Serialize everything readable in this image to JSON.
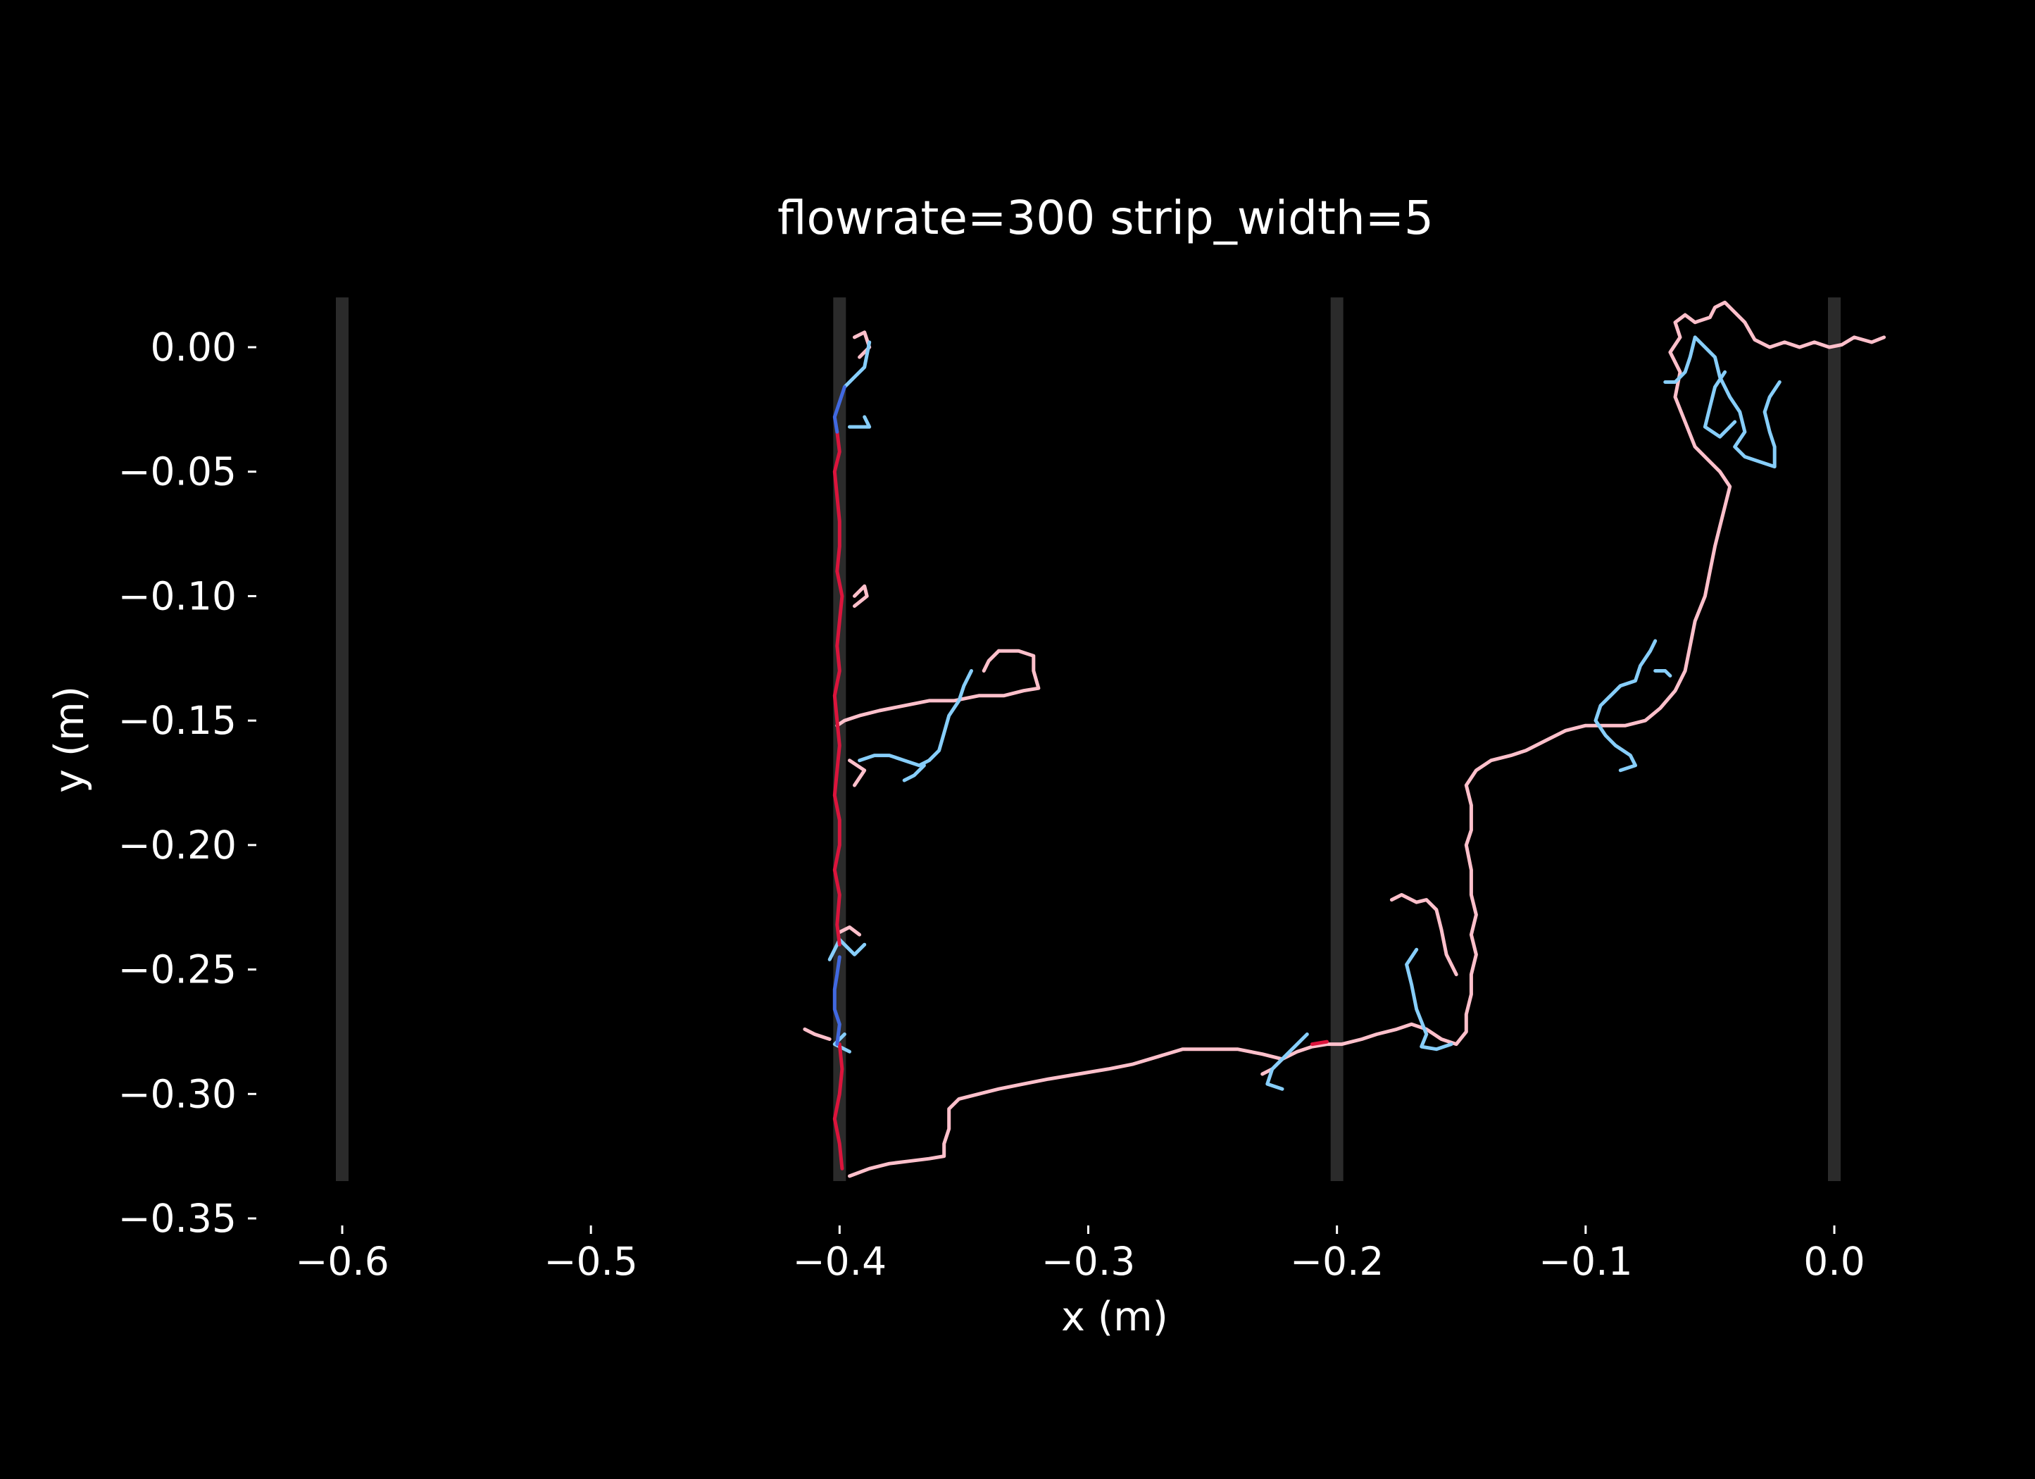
{
  "chart_data": {
    "type": "line",
    "title": "flowrate=300 strip_width=5",
    "xlabel": "x (m)",
    "ylabel": "y (m)",
    "xlim": [
      -0.63,
      0.03
    ],
    "ylim": [
      -0.35,
      0.018
    ],
    "x_ticks": [
      -0.6,
      -0.5,
      -0.4,
      -0.3,
      -0.2,
      -0.1,
      0.0
    ],
    "x_tick_labels": [
      "−0.6",
      "−0.5",
      "−0.4",
      "−0.3",
      "−0.2",
      "−0.1",
      "0.0"
    ],
    "y_ticks": [
      0.0,
      -0.05,
      -0.1,
      -0.15,
      -0.2,
      -0.25,
      -0.3,
      -0.35
    ],
    "y_tick_labels": [
      "0.00",
      "−0.05",
      "−0.10",
      "−0.15",
      "−0.20",
      "−0.25",
      "−0.30",
      "−0.35"
    ],
    "grid": false,
    "background": "#000000",
    "strips": {
      "x_centers": [
        -0.6,
        -0.4,
        -0.2,
        0.0
      ],
      "y_range": [
        -0.335,
        0.02
      ],
      "color": "#2b2b2b"
    },
    "series": [
      {
        "color": "#ffc0cb",
        "points": [
          [
            0.02,
            0.004
          ],
          [
            0.015,
            0.002
          ],
          [
            0.008,
            0.004
          ],
          [
            0.003,
            0.001
          ],
          [
            -0.002,
            0.0
          ],
          [
            -0.008,
            0.002
          ],
          [
            -0.014,
            0.0
          ],
          [
            -0.02,
            0.002
          ],
          [
            -0.026,
            0.0
          ],
          [
            -0.032,
            0.003
          ],
          [
            -0.036,
            0.01
          ],
          [
            -0.04,
            0.014
          ],
          [
            -0.044,
            0.018
          ],
          [
            -0.048,
            0.016
          ],
          [
            -0.05,
            0.012
          ],
          [
            -0.056,
            0.01
          ],
          [
            -0.06,
            0.013
          ],
          [
            -0.064,
            0.01
          ],
          [
            -0.062,
            0.004
          ],
          [
            -0.066,
            -0.002
          ],
          [
            -0.062,
            -0.01
          ],
          [
            -0.064,
            -0.02
          ],
          [
            -0.06,
            -0.03
          ],
          [
            -0.056,
            -0.04
          ],
          [
            -0.05,
            -0.046
          ],
          [
            -0.046,
            -0.05
          ],
          [
            -0.042,
            -0.056
          ],
          [
            -0.044,
            -0.064
          ],
          [
            -0.046,
            -0.072
          ],
          [
            -0.048,
            -0.08
          ],
          [
            -0.05,
            -0.09
          ],
          [
            -0.052,
            -0.1
          ],
          [
            -0.056,
            -0.11
          ],
          [
            -0.058,
            -0.12
          ],
          [
            -0.06,
            -0.13
          ],
          [
            -0.064,
            -0.138
          ],
          [
            -0.07,
            -0.145
          ],
          [
            -0.076,
            -0.15
          ],
          [
            -0.084,
            -0.152
          ],
          [
            -0.092,
            -0.152
          ],
          [
            -0.1,
            -0.152
          ],
          [
            -0.108,
            -0.154
          ],
          [
            -0.116,
            -0.158
          ],
          [
            -0.124,
            -0.162
          ],
          [
            -0.13,
            -0.164
          ],
          [
            -0.138,
            -0.166
          ],
          [
            -0.144,
            -0.17
          ],
          [
            -0.148,
            -0.176
          ],
          [
            -0.146,
            -0.184
          ],
          [
            -0.146,
            -0.194
          ],
          [
            -0.148,
            -0.2
          ],
          [
            -0.146,
            -0.21
          ],
          [
            -0.146,
            -0.22
          ],
          [
            -0.144,
            -0.228
          ],
          [
            -0.146,
            -0.236
          ],
          [
            -0.144,
            -0.244
          ],
          [
            -0.146,
            -0.252
          ],
          [
            -0.146,
            -0.26
          ],
          [
            -0.148,
            -0.268
          ],
          [
            -0.148,
            -0.275
          ],
          [
            -0.152,
            -0.28
          ],
          [
            -0.158,
            -0.278
          ],
          [
            -0.164,
            -0.274
          ],
          [
            -0.17,
            -0.272
          ],
          [
            -0.176,
            -0.274
          ],
          [
            -0.184,
            -0.276
          ],
          [
            -0.19,
            -0.278
          ],
          [
            -0.198,
            -0.28
          ],
          [
            -0.204,
            -0.28
          ],
          [
            -0.21,
            -0.281
          ],
          [
            -0.216,
            -0.283
          ],
          [
            -0.222,
            -0.286
          ],
          [
            -0.23,
            -0.284
          ],
          [
            -0.24,
            -0.282
          ],
          [
            -0.252,
            -0.282
          ],
          [
            -0.262,
            -0.282
          ],
          [
            -0.272,
            -0.285
          ],
          [
            -0.282,
            -0.288
          ],
          [
            -0.292,
            -0.29
          ],
          [
            -0.304,
            -0.292
          ],
          [
            -0.316,
            -0.294
          ],
          [
            -0.326,
            -0.296
          ],
          [
            -0.336,
            -0.298
          ],
          [
            -0.344,
            -0.3
          ],
          [
            -0.352,
            -0.302
          ],
          [
            -0.356,
            -0.306
          ],
          [
            -0.356,
            -0.314
          ],
          [
            -0.358,
            -0.32
          ],
          [
            -0.358,
            -0.325
          ],
          [
            -0.364,
            -0.326
          ],
          [
            -0.372,
            -0.327
          ],
          [
            -0.38,
            -0.328
          ],
          [
            -0.388,
            -0.33
          ],
          [
            -0.396,
            -0.333
          ]
        ],
        "extra_segments": [
          [
            [
              -0.178,
              -0.222
            ],
            [
              -0.174,
              -0.22
            ],
            [
              -0.168,
              -0.223
            ],
            [
              -0.164,
              -0.222
            ],
            [
              -0.16,
              -0.226
            ],
            [
              -0.158,
              -0.234
            ],
            [
              -0.156,
              -0.244
            ],
            [
              -0.152,
              -0.252
            ]
          ],
          [
            [
              -0.336,
              -0.122
            ],
            [
              -0.328,
              -0.122
            ],
            [
              -0.322,
              -0.124
            ],
            [
              -0.322,
              -0.13
            ],
            [
              -0.32,
              -0.137
            ],
            [
              -0.326,
              -0.138
            ],
            [
              -0.334,
              -0.14
            ],
            [
              -0.344,
              -0.14
            ],
            [
              -0.354,
              -0.142
            ],
            [
              -0.364,
              -0.142
            ],
            [
              -0.374,
              -0.144
            ],
            [
              -0.384,
              -0.146
            ],
            [
              -0.392,
              -0.148
            ],
            [
              -0.398,
              -0.15
            ],
            [
              -0.401,
              -0.152
            ]
          ],
          [
            [
              -0.336,
              -0.122
            ],
            [
              -0.34,
              -0.126
            ],
            [
              -0.342,
              -0.13
            ]
          ],
          [
            [
              -0.394,
              -0.1
            ],
            [
              -0.39,
              -0.096
            ],
            [
              -0.389,
              -0.1
            ],
            [
              -0.394,
              -0.104
            ]
          ],
          [
            [
              -0.394,
              0.004
            ],
            [
              -0.39,
              0.006
            ],
            [
              -0.388,
              0.0
            ],
            [
              -0.392,
              -0.004
            ]
          ],
          [
            [
              -0.396,
              -0.166
            ],
            [
              -0.39,
              -0.17
            ],
            [
              -0.394,
              -0.176
            ]
          ],
          [
            [
              -0.4,
              -0.235
            ],
            [
              -0.396,
              -0.233
            ],
            [
              -0.392,
              -0.236
            ]
          ],
          [
            [
              -0.404,
              -0.278
            ],
            [
              -0.41,
              -0.276
            ],
            [
              -0.414,
              -0.274
            ]
          ],
          [
            [
              -0.222,
              -0.286
            ],
            [
              -0.226,
              -0.29
            ],
            [
              -0.23,
              -0.292
            ]
          ]
        ]
      },
      {
        "color": "#87cefa",
        "points": [
          [
            -0.022,
            -0.014
          ],
          [
            -0.026,
            -0.02
          ],
          [
            -0.028,
            -0.026
          ],
          [
            -0.026,
            -0.034
          ],
          [
            -0.024,
            -0.04
          ],
          [
            -0.024,
            -0.048
          ],
          [
            -0.03,
            -0.046
          ],
          [
            -0.036,
            -0.044
          ],
          [
            -0.04,
            -0.04
          ],
          [
            -0.036,
            -0.034
          ],
          [
            -0.038,
            -0.026
          ],
          [
            -0.042,
            -0.02
          ],
          [
            -0.046,
            -0.012
          ],
          [
            -0.048,
            -0.004
          ],
          [
            -0.052,
            0.0
          ],
          [
            -0.056,
            0.004
          ],
          [
            -0.058,
            -0.004
          ],
          [
            -0.06,
            -0.01
          ],
          [
            -0.064,
            -0.014
          ],
          [
            -0.068,
            -0.014
          ]
        ],
        "extra_segments": [
          [
            [
              -0.044,
              -0.01
            ],
            [
              -0.048,
              -0.016
            ],
            [
              -0.05,
              -0.024
            ],
            [
              -0.052,
              -0.032
            ],
            [
              -0.046,
              -0.036
            ],
            [
              -0.04,
              -0.03
            ]
          ],
          [
            [
              -0.072,
              -0.118
            ],
            [
              -0.074,
              -0.122
            ],
            [
              -0.078,
              -0.128
            ],
            [
              -0.08,
              -0.134
            ],
            [
              -0.086,
              -0.136
            ],
            [
              -0.09,
              -0.14
            ],
            [
              -0.094,
              -0.144
            ],
            [
              -0.096,
              -0.15
            ],
            [
              -0.092,
              -0.156
            ],
            [
              -0.088,
              -0.16
            ],
            [
              -0.082,
              -0.164
            ],
            [
              -0.08,
              -0.168
            ],
            [
              -0.086,
              -0.17
            ]
          ],
          [
            [
              -0.072,
              -0.13
            ],
            [
              -0.068,
              -0.13
            ],
            [
              -0.066,
              -0.132
            ]
          ],
          [
            [
              -0.347,
              -0.13
            ],
            [
              -0.35,
              -0.136
            ],
            [
              -0.352,
              -0.142
            ],
            [
              -0.356,
              -0.148
            ],
            [
              -0.358,
              -0.155
            ],
            [
              -0.36,
              -0.162
            ],
            [
              -0.364,
              -0.166
            ],
            [
              -0.368,
              -0.168
            ],
            [
              -0.374,
              -0.166
            ],
            [
              -0.38,
              -0.164
            ],
            [
              -0.386,
              -0.164
            ],
            [
              -0.392,
              -0.166
            ]
          ],
          [
            [
              -0.366,
              -0.168
            ],
            [
              -0.37,
              -0.172
            ],
            [
              -0.374,
              -0.174
            ]
          ],
          [
            [
              -0.154,
              -0.28
            ],
            [
              -0.16,
              -0.282
            ],
            [
              -0.166,
              -0.281
            ],
            [
              -0.164,
              -0.276
            ],
            [
              -0.168,
              -0.266
            ],
            [
              -0.17,
              -0.256
            ],
            [
              -0.172,
              -0.248
            ],
            [
              -0.168,
              -0.242
            ]
          ],
          [
            [
              -0.212,
              -0.276
            ],
            [
              -0.22,
              -0.284
            ],
            [
              -0.226,
              -0.29
            ],
            [
              -0.228,
              -0.296
            ],
            [
              -0.222,
              -0.298
            ]
          ],
          [
            [
              -0.39,
              -0.24
            ],
            [
              -0.394,
              -0.244
            ],
            [
              -0.4,
              -0.238
            ],
            [
              -0.404,
              -0.246
            ]
          ],
          [
            [
              -0.39,
              -0.028
            ],
            [
              -0.388,
              -0.032
            ],
            [
              -0.396,
              -0.032
            ]
          ],
          [
            [
              -0.388,
              0.002
            ],
            [
              -0.39,
              -0.008
            ],
            [
              -0.394,
              -0.012
            ],
            [
              -0.398,
              -0.016
            ]
          ],
          [
            [
              -0.398,
              -0.276
            ],
            [
              -0.402,
              -0.28
            ],
            [
              -0.396,
              -0.283
            ]
          ]
        ]
      },
      {
        "color": "#dc143c",
        "points": [
          [
            -0.401,
            -0.034
          ],
          [
            -0.4,
            -0.042
          ],
          [
            -0.402,
            -0.05
          ],
          [
            -0.401,
            -0.06
          ],
          [
            -0.4,
            -0.07
          ],
          [
            -0.4,
            -0.08
          ],
          [
            -0.401,
            -0.09
          ],
          [
            -0.399,
            -0.1
          ],
          [
            -0.4,
            -0.11
          ],
          [
            -0.401,
            -0.12
          ],
          [
            -0.4,
            -0.13
          ],
          [
            -0.402,
            -0.14
          ],
          [
            -0.401,
            -0.15
          ],
          [
            -0.4,
            -0.16
          ],
          [
            -0.401,
            -0.17
          ],
          [
            -0.402,
            -0.18
          ],
          [
            -0.4,
            -0.19
          ],
          [
            -0.4,
            -0.2
          ],
          [
            -0.402,
            -0.21
          ],
          [
            -0.4,
            -0.22
          ],
          [
            -0.401,
            -0.232
          ],
          [
            -0.4,
            -0.24
          ]
        ],
        "extra_segments": [
          [
            [
              -0.4,
              -0.28
            ],
            [
              -0.399,
              -0.29
            ],
            [
              -0.4,
              -0.3
            ],
            [
              -0.402,
              -0.31
            ],
            [
              -0.4,
              -0.32
            ],
            [
              -0.399,
              -0.33
            ]
          ],
          [
            [
              -0.21,
              -0.28
            ],
            [
              -0.204,
              -0.279
            ]
          ]
        ]
      },
      {
        "color": "#4169e1",
        "points": [
          [
            -0.398,
            -0.016
          ],
          [
            -0.4,
            -0.022
          ],
          [
            -0.402,
            -0.028
          ],
          [
            -0.401,
            -0.034
          ]
        ],
        "extra_segments": [
          [
            [
              -0.4,
              -0.245
            ],
            [
              -0.401,
              -0.252
            ],
            [
              -0.402,
              -0.258
            ],
            [
              -0.402,
              -0.266
            ],
            [
              -0.4,
              -0.272
            ],
            [
              -0.401,
              -0.28
            ]
          ]
        ]
      }
    ]
  }
}
